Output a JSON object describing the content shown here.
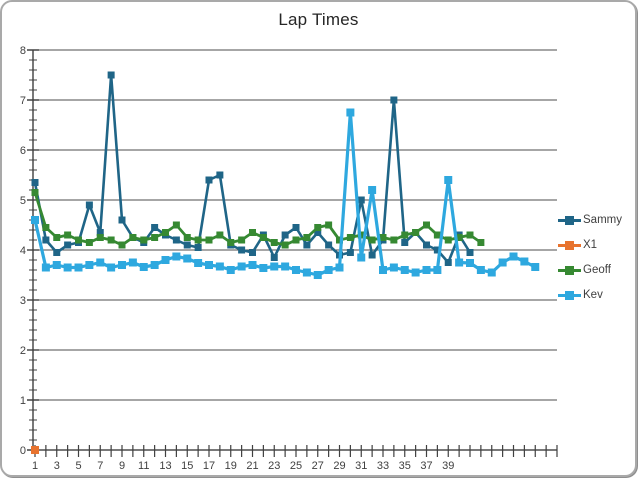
{
  "window": {
    "background": "#FFFFFF",
    "border_color": "#A9A9A9"
  },
  "chart_data": {
    "type": "line",
    "title": "Lap Times",
    "x_axis": {
      "categories_count": 49,
      "first_label": 1,
      "label_every": 2,
      "tick_labels": [
        "1",
        "3",
        "5",
        "7",
        "9",
        "11",
        "13",
        "15",
        "17",
        "19",
        "21",
        "23",
        "25",
        "27",
        "29",
        "31",
        "33",
        "35",
        "37",
        "39"
      ]
    },
    "y_axis": {
      "min": 0,
      "max": 8,
      "major_step": 1,
      "minor_step": 0.2,
      "tick_labels": [
        "0",
        "1",
        "2",
        "3",
        "4",
        "5",
        "6",
        "7",
        "8"
      ]
    },
    "grid": {
      "horizontal_major": true,
      "vertical": false
    },
    "legend_position": "right",
    "series": [
      {
        "name": "Sammy",
        "color": "#1F6587",
        "marker": "square",
        "marker_size": 7,
        "line_width": 2.6,
        "start_x": 1,
        "values": [
          5.35,
          4.2,
          3.95,
          4.1,
          4.15,
          4.9,
          4.35,
          7.5,
          4.6,
          4.25,
          4.15,
          4.45,
          4.3,
          4.2,
          4.1,
          4.05,
          5.4,
          5.5,
          4.1,
          4.0,
          3.95,
          4.3,
          3.85,
          4.3,
          4.45,
          4.1,
          4.35,
          4.1,
          3.9,
          3.95,
          5.0,
          3.9,
          4.2,
          7.0,
          4.15,
          4.35,
          4.1,
          4.0,
          3.75,
          4.3,
          3.95
        ]
      },
      {
        "name": "X1",
        "color": "#E8732E",
        "marker": "square",
        "marker_size": 8,
        "line_width": 2.6,
        "start_x": 1,
        "values": [
          0
        ]
      },
      {
        "name": "Geoff",
        "color": "#368932",
        "marker": "square",
        "marker_size": 7,
        "line_width": 2.8,
        "start_x": 1,
        "values": [
          5.15,
          4.45,
          4.25,
          4.3,
          4.2,
          4.15,
          4.25,
          4.2,
          4.1,
          4.25,
          4.2,
          4.25,
          4.35,
          4.5,
          4.25,
          4.2,
          4.2,
          4.3,
          4.15,
          4.2,
          4.35,
          4.25,
          4.15,
          4.1,
          4.2,
          4.25,
          4.45,
          4.5,
          4.2,
          4.25,
          4.3,
          4.2,
          4.25,
          4.2,
          4.3,
          4.35,
          4.5,
          4.3,
          4.2,
          4.25,
          4.3,
          4.15
        ]
      },
      {
        "name": "Kev",
        "color": "#2EA8DF",
        "marker": "square",
        "marker_size": 8,
        "line_width": 3.2,
        "start_x": 1,
        "values": [
          4.6,
          3.65,
          3.7,
          3.65,
          3.65,
          3.7,
          3.75,
          3.65,
          3.7,
          3.75,
          3.66,
          3.7,
          3.8,
          3.87,
          3.83,
          3.74,
          3.7,
          3.67,
          3.6,
          3.67,
          3.7,
          3.64,
          3.67,
          3.67,
          3.6,
          3.55,
          3.5,
          3.6,
          3.65,
          6.75,
          3.85,
          5.2,
          3.6,
          3.65,
          3.6,
          3.55,
          3.6,
          3.6,
          5.4,
          3.75,
          3.74,
          3.6,
          3.55,
          3.75,
          3.87,
          3.77,
          3.66
        ]
      }
    ],
    "style": {
      "gridline_color": "#4D4D4D",
      "axis_color": "#404040",
      "tick_label_color": "#3F3F3F",
      "title_color": "#262626"
    }
  }
}
